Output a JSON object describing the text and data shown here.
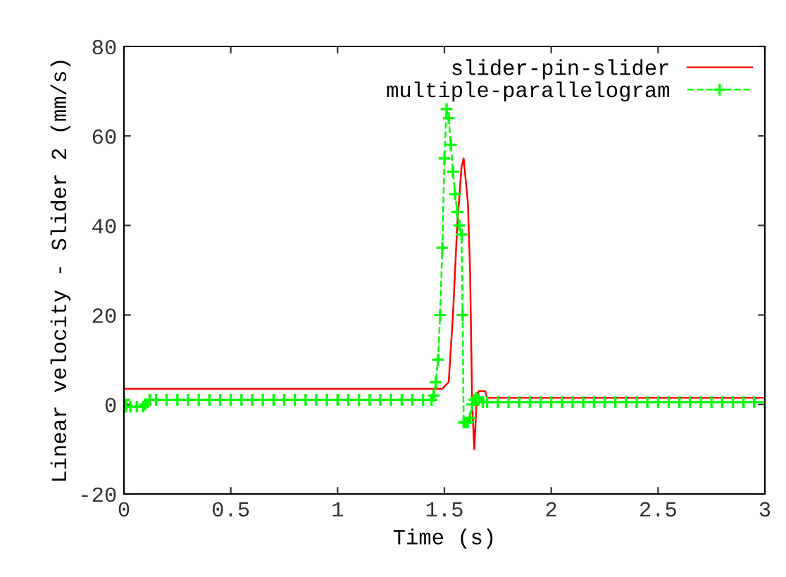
{
  "chart_data": {
    "type": "line",
    "xlabel": "Time (s)",
    "ylabel": "Linear velocity - Slider 2 (mm/s)",
    "xlim": [
      0,
      3
    ],
    "ylim": [
      -20,
      80
    ],
    "xticks": [
      0,
      0.5,
      1,
      1.5,
      2,
      2.5,
      3
    ],
    "yticks": [
      -20,
      0,
      20,
      40,
      60,
      80
    ],
    "grid": false,
    "legend": "top right",
    "series": [
      {
        "name": "slider-pin-slider",
        "color": "#ff0000",
        "marker": "none",
        "line_style": "solid",
        "x": [
          0,
          1.49,
          1.52,
          1.54,
          1.56,
          1.58,
          1.59,
          1.6,
          1.61,
          1.62,
          1.63,
          1.64,
          1.65,
          1.66,
          1.69,
          1.7,
          3.0
        ],
        "values": [
          3.5,
          3.5,
          5,
          20,
          40,
          53,
          55,
          50,
          45,
          30,
          0,
          -10,
          0,
          3,
          3,
          1.5,
          1.5
        ]
      },
      {
        "name": "multiple-parallelogram",
        "color": "#00ff00",
        "marker": "cross",
        "line_style": "dashed",
        "x": [
          0,
          0.01,
          0.03,
          0.06,
          0.09,
          0.1,
          0.12,
          0.15,
          0.2,
          0.25,
          0.3,
          0.35,
          0.4,
          0.45,
          0.5,
          0.55,
          0.6,
          0.65,
          0.7,
          0.75,
          0.8,
          0.85,
          0.9,
          0.95,
          1.0,
          1.05,
          1.1,
          1.15,
          1.2,
          1.25,
          1.3,
          1.35,
          1.4,
          1.44,
          1.45,
          1.46,
          1.47,
          1.48,
          1.49,
          1.5,
          1.51,
          1.52,
          1.53,
          1.54,
          1.55,
          1.56,
          1.57,
          1.58,
          1.585,
          1.59,
          1.6,
          1.61,
          1.62,
          1.63,
          1.64,
          1.65,
          1.66,
          1.68,
          1.7,
          1.75,
          1.8,
          1.85,
          1.9,
          1.95,
          2.0,
          2.05,
          2.1,
          2.15,
          2.2,
          2.25,
          2.3,
          2.35,
          2.4,
          2.45,
          2.5,
          2.55,
          2.6,
          2.65,
          2.7,
          2.75,
          2.8,
          2.85,
          2.9,
          2.95,
          3.0
        ],
        "values": [
          1,
          -0.5,
          -0.5,
          -0.5,
          -0.5,
          0,
          1,
          1,
          1,
          1,
          1,
          1,
          1,
          1,
          1,
          1,
          1,
          1,
          1,
          1,
          1,
          1,
          1,
          1,
          1,
          1,
          1,
          1,
          1,
          1,
          1,
          1,
          1,
          1,
          2,
          5,
          10,
          20,
          35,
          55,
          66,
          64,
          58,
          52,
          47,
          43,
          40,
          38,
          20,
          -4,
          -4,
          -4,
          -3,
          0,
          1,
          1.5,
          1,
          0.5,
          0.5,
          0.5,
          0.5,
          0.5,
          0.5,
          0.5,
          0.5,
          0.5,
          0.5,
          0.5,
          0.5,
          0.5,
          0.5,
          0.5,
          0.5,
          0.5,
          0.5,
          0.5,
          0.5,
          0.5,
          0.5,
          0.5,
          0.5,
          0.5,
          0.5,
          0.5,
          0.5
        ]
      }
    ]
  }
}
